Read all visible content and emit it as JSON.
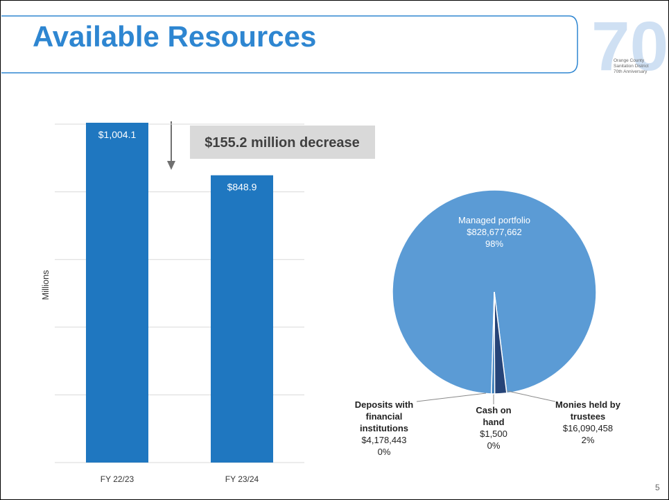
{
  "title": "Available Resources",
  "logo": {
    "mark": "70",
    "line1": "Orange County",
    "line2": "Sanitation District",
    "line3": "70th Anniversary"
  },
  "page_number": "5",
  "chart_data": [
    {
      "type": "bar",
      "y_label": "Millions",
      "categories": [
        "FY 22/23",
        "FY 23/24"
      ],
      "values": [
        1004.1,
        848.9
      ],
      "value_labels": [
        "$1,004.1",
        "$848.9"
      ],
      "color": "#1f77c0",
      "ylim": [
        0,
        1000
      ],
      "yticks": [
        0,
        200,
        400,
        600,
        800,
        1000
      ],
      "grid": true,
      "annotation": "$155.2 million decrease"
    },
    {
      "type": "pie",
      "categories": [
        "Monies held by trustees",
        "Cash on hand",
        "Deposits with financial institutions",
        "Managed portfolio"
      ],
      "values": [
        16090458,
        1500,
        4178443,
        828677662
      ],
      "value_labels": [
        "$16,090,458",
        "$1,500",
        "$4,178,443",
        "$828,677,662"
      ],
      "percents": [
        2,
        0,
        0,
        98
      ],
      "percent_labels": [
        "2%",
        "0%",
        "0%",
        "98%"
      ],
      "colors": [
        "#264478",
        "#7fb0e0",
        "#2e75b6",
        "#5b9bd5"
      ]
    }
  ]
}
